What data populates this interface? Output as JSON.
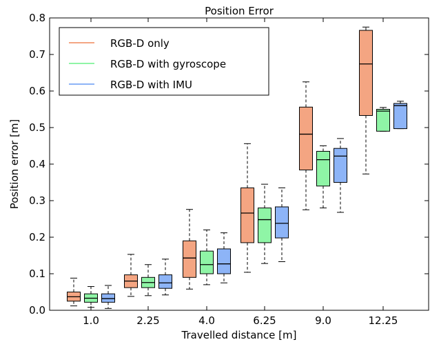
{
  "chart_data": {
    "type": "box",
    "title": "Position Error",
    "xlabel": "Travelled distance [m]",
    "ylabel": "Position error [m]",
    "categories": [
      "1.0",
      "2.25",
      "4.0",
      "6.25",
      "9.0",
      "12.25"
    ],
    "ylim": [
      0.0,
      0.8
    ],
    "yticks": [
      "0.0",
      "0.1",
      "0.2",
      "0.3",
      "0.4",
      "0.5",
      "0.6",
      "0.7",
      "0.8"
    ],
    "grid": false,
    "legend_position": "top-left",
    "series": [
      {
        "name": "RGB-D only",
        "color": "#f4a582",
        "boxes": [
          {
            "whislo": 0.012,
            "q1": 0.025,
            "med": 0.037,
            "q3": 0.05,
            "whishi": 0.088
          },
          {
            "whislo": 0.038,
            "q1": 0.062,
            "med": 0.08,
            "q3": 0.097,
            "whishi": 0.153
          },
          {
            "whislo": 0.058,
            "q1": 0.09,
            "med": 0.143,
            "q3": 0.19,
            "whishi": 0.276
          },
          {
            "whislo": 0.104,
            "q1": 0.185,
            "med": 0.266,
            "q3": 0.335,
            "whishi": 0.456
          },
          {
            "whislo": 0.275,
            "q1": 0.384,
            "med": 0.482,
            "q3": 0.556,
            "whishi": 0.625
          },
          {
            "whislo": 0.373,
            "q1": 0.533,
            "med": 0.674,
            "q3": 0.766,
            "whishi": 0.775
          }
        ]
      },
      {
        "name": "RGB-D with gyroscope",
        "color": "#8ff5a6",
        "boxes": [
          {
            "whislo": 0.008,
            "q1": 0.022,
            "med": 0.033,
            "q3": 0.045,
            "whishi": 0.065
          },
          {
            "whislo": 0.04,
            "q1": 0.062,
            "med": 0.076,
            "q3": 0.09,
            "whishi": 0.125
          },
          {
            "whislo": 0.07,
            "q1": 0.1,
            "med": 0.125,
            "q3": 0.162,
            "whishi": 0.22
          },
          {
            "whislo": 0.128,
            "q1": 0.185,
            "med": 0.248,
            "q3": 0.28,
            "whishi": 0.345
          },
          {
            "whislo": 0.28,
            "q1": 0.34,
            "med": 0.412,
            "q3": 0.435,
            "whishi": 0.45
          },
          {
            "whislo": 0.49,
            "q1": 0.49,
            "med": 0.545,
            "q3": 0.55,
            "whishi": 0.555
          }
        ]
      },
      {
        "name": "RGB-D with IMU",
        "color": "#8db4f7",
        "boxes": [
          {
            "whislo": 0.005,
            "q1": 0.022,
            "med": 0.032,
            "q3": 0.045,
            "whishi": 0.068
          },
          {
            "whislo": 0.042,
            "q1": 0.06,
            "med": 0.075,
            "q3": 0.097,
            "whishi": 0.14
          },
          {
            "whislo": 0.075,
            "q1": 0.1,
            "med": 0.127,
            "q3": 0.168,
            "whishi": 0.212
          },
          {
            "whislo": 0.133,
            "q1": 0.198,
            "med": 0.238,
            "q3": 0.283,
            "whishi": 0.335
          },
          {
            "whislo": 0.268,
            "q1": 0.35,
            "med": 0.422,
            "q3": 0.443,
            "whishi": 0.47
          },
          {
            "whislo": 0.497,
            "q1": 0.497,
            "med": 0.56,
            "q3": 0.566,
            "whishi": 0.572
          }
        ]
      }
    ]
  }
}
